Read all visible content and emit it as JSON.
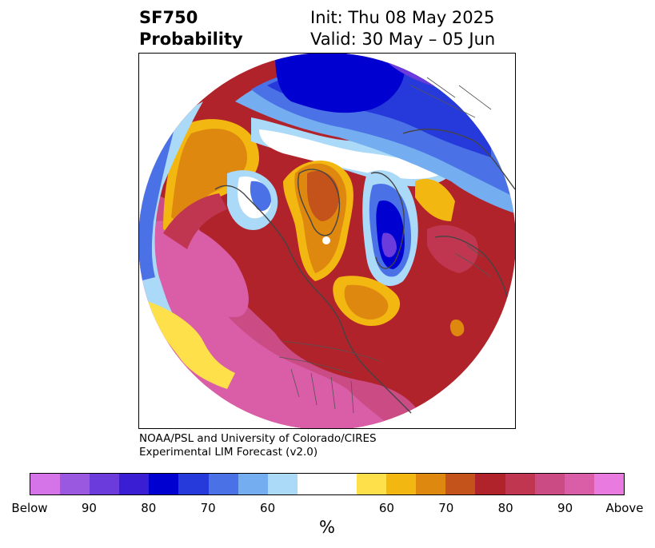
{
  "header": {
    "title_line1": "SF750",
    "title_line2": "Probability",
    "init": "Init: Thu 08 May 2025",
    "valid": "Valid: 30 May – 05 Jun"
  },
  "credit": {
    "line1": "NOAA/PSL and University of Colorado/CIRES",
    "line2": "Experimental LIM Forecast (v2.0)"
  },
  "colorbar": {
    "colors": [
      "#d574e8",
      "#9a57e0",
      "#6c3bdc",
      "#3a1ed4",
      "#0000d0",
      "#2639db",
      "#4a72e6",
      "#74aef0",
      "#abdaf8",
      "#ffffff",
      "#ffffff",
      "#fde04a",
      "#f3b711",
      "#df880f",
      "#c4531b",
      "#b0232b",
      "#c03650",
      "#cb4b85",
      "#d95da7",
      "#e87ae0"
    ],
    "tick_labels": [
      "Below",
      "90",
      "80",
      "70",
      "60",
      "60",
      "70",
      "80",
      "90",
      "Above"
    ],
    "unit": "%"
  },
  "map": {
    "colors": {
      "pink": "#d95da7",
      "rose": "#cb4b85",
      "crimson": "#c03650",
      "red": "#b0232b",
      "rust": "#c4531b",
      "orange": "#df880f",
      "gold": "#f3b711",
      "yellow": "#fde04a",
      "lightblue": "#abdaf8",
      "skyblue": "#74aef0",
      "blue": "#4a72e6",
      "royal": "#2639db",
      "navy": "#0000d0",
      "indigo": "#3a1ed4",
      "violet": "#6c3bdc"
    }
  }
}
